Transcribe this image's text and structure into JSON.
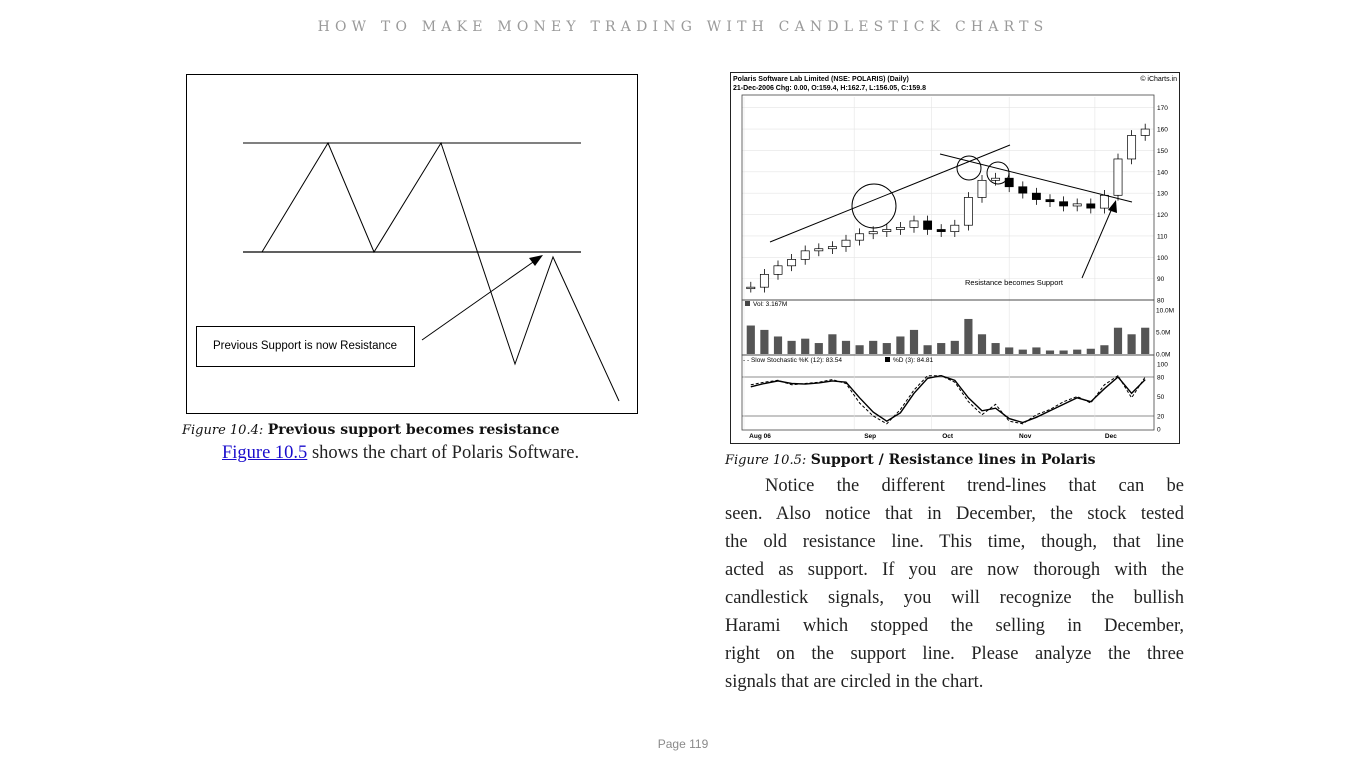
{
  "header": {
    "running_title": "HOW TO MAKE MONEY TRADING WITH CANDLESTICK CHARTS"
  },
  "figure_10_4": {
    "box_label": "Previous Support is now Resistance",
    "caption_num": "Figure 10.4:",
    "caption_text": "Previous support becomes resistance"
  },
  "left_paragraph": {
    "link_text": "Figure 10.5",
    "text": " shows the chart of Polaris Software."
  },
  "figure_10_5": {
    "title_line1": "Polaris Software Lab Limited (NSE: POLARIS) (Daily)",
    "title_line2": "21-Dec-2006 Chg: 0.00, O:159.4, H:162.7, L:156.05, C:159.8",
    "source": "© iCharts.in",
    "annotation": "Resistance becomes Support",
    "volume_label": "Vol: 3.167M",
    "stoch_label_k": "- - Slow Stochastic %K (12): 83.54",
    "stoch_label_d": "%D (3): 84.81",
    "caption_num": "Figure 10.5:",
    "caption_text": "Support / Resistance lines in Polaris"
  },
  "chart_data": [
    {
      "type": "line",
      "title": "",
      "xlabel": "",
      "ylabel": "",
      "series": [
        {
          "values": [
            0,
            70,
            0,
            70,
            0,
            70,
            0,
            100,
            0,
            100,
            0,
            100,
            0
          ]
        }
      ],
      "annotations": [
        "Previous Support is now Resistance"
      ]
    },
    {
      "type": "line",
      "title": "Polaris Software Lab Limited (NSE: POLARIS) (Daily)",
      "x_ticks": [
        "Aug 06",
        "Sep",
        "Oct",
        "Nov",
        "Dec"
      ],
      "price_ticks": [
        "170",
        "160",
        "150",
        "140",
        "130",
        "120",
        "110",
        "100",
        "90",
        "80"
      ],
      "volume_ticks": [
        "10.0M",
        "5.0M",
        "0.0M"
      ],
      "stoch_ticks": [
        "100",
        "80",
        "50",
        "20",
        "0"
      ],
      "ylim": [
        80,
        175
      ],
      "series": [
        {
          "values": [
            86,
            92,
            96,
            99,
            103,
            104,
            105,
            108,
            111,
            112,
            113,
            114,
            117,
            113,
            112,
            115,
            128,
            136,
            137,
            133,
            130,
            127,
            126,
            124,
            125,
            123,
            129,
            146,
            157,
            160
          ]
        }
      ],
      "volume": [
        6.5,
        5.5,
        4.0,
        3.0,
        3.5,
        2.5,
        4.5,
        3.0,
        2.0,
        3.0,
        2.5,
        4.0,
        5.5,
        2.0,
        2.5,
        3.0,
        8.0,
        4.5,
        2.5,
        1.5,
        1.0,
        1.5,
        0.8,
        0.8,
        1.0,
        1.2,
        2.0,
        6.0,
        4.5,
        6.0
      ],
      "stochastic_k": [
        68,
        72,
        75,
        68,
        70,
        72,
        76,
        70,
        40,
        20,
        8,
        30,
        60,
        82,
        82,
        72,
        42,
        22,
        38,
        12,
        8,
        22,
        30,
        42,
        50,
        40,
        68,
        82,
        48,
        80
      ],
      "stochastic_d": [
        65,
        70,
        74,
        70,
        69,
        71,
        74,
        72,
        48,
        26,
        12,
        25,
        55,
        78,
        82,
        75,
        48,
        28,
        32,
        16,
        10,
        18,
        28,
        38,
        48,
        42,
        62,
        80,
        55,
        76
      ],
      "annotations": [
        "Resistance becomes Support"
      ]
    }
  ],
  "right_paragraph": {
    "lines": [
      "Notice the different trend-lines that can be",
      "seen. Also notice that in December, the stock tested",
      "the old resistance line. This time, though, that line",
      "acted as support. If you are now thorough with the",
      "candlestick signals, you will recognize the bullish",
      "Harami which stopped the selling in December,",
      "right on the support line. Please analyze the three",
      "signals that are circled in the chart."
    ]
  },
  "footer": {
    "page": "Page 119"
  }
}
